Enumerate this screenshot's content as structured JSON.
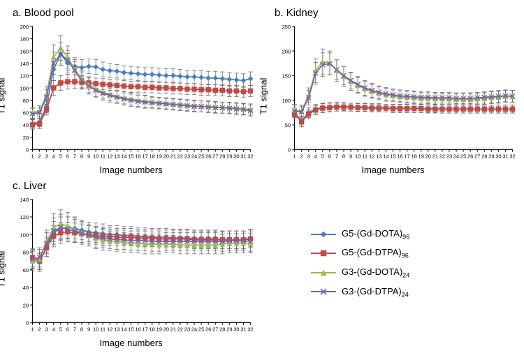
{
  "series_meta": [
    {
      "key": "g5dota",
      "label": "G5-(Gd-DOTA)",
      "sub": "96",
      "color": "#4a7ebb",
      "marker": "diamond"
    },
    {
      "key": "g5dtpa",
      "label": "G5-(Gd-DTPA)",
      "sub": "96",
      "color": "#be4b48",
      "marker": "square"
    },
    {
      "key": "g3dota",
      "label": "G3-(Gd-DOTA)",
      "sub": "24",
      "color": "#98b954",
      "marker": "triangle"
    },
    {
      "key": "g3dtpa",
      "label": "G3-(Gd-DTPA)",
      "sub": "24",
      "color": "#7d60a0",
      "marker": "x"
    }
  ],
  "error_bar_color": "#666666",
  "tick_color": "#000000",
  "axis_color": "#000000",
  "background": "#ffffff",
  "line_width": 1.6,
  "marker_size": 3.2,
  "error_cap": 3,
  "tick_fontsize": 7,
  "label_fontsize": 13,
  "title_fontsize": 15,
  "charts": [
    {
      "id": "blood",
      "title": "a. Blood pool",
      "xlabel": "Image numbers",
      "ylabel": "T1 signal",
      "ylim": [
        0,
        200
      ],
      "ytick_step": 20,
      "xticks": 32,
      "series": {
        "g5dota": {
          "y": [
            42,
            45,
            70,
            130,
            155,
            140,
            135,
            133,
            135,
            134,
            130,
            128,
            127,
            125,
            124,
            123,
            122,
            122,
            121,
            120,
            120,
            119,
            118,
            118,
            117,
            116,
            116,
            115,
            114,
            113,
            112,
            115
          ],
          "err": [
            8,
            8,
            10,
            18,
            18,
            16,
            14,
            13,
            12,
            12,
            12,
            11,
            11,
            11,
            11,
            11,
            11,
            11,
            11,
            11,
            11,
            11,
            11,
            11,
            11,
            11,
            11,
            11,
            11,
            11,
            11,
            11
          ]
        },
        "g5dtpa": {
          "y": [
            40,
            42,
            65,
            100,
            108,
            110,
            110,
            109,
            108,
            107,
            106,
            105,
            104,
            103,
            102,
            102,
            101,
            101,
            100,
            100,
            99,
            99,
            98,
            98,
            97,
            97,
            96,
            96,
            95,
            95,
            94,
            95
          ],
          "err": [
            8,
            8,
            9,
            12,
            12,
            12,
            11,
            10,
            10,
            9,
            9,
            9,
            9,
            9,
            9,
            9,
            9,
            9,
            9,
            9,
            9,
            9,
            9,
            9,
            9,
            9,
            9,
            9,
            9,
            9,
            9,
            9
          ]
        },
        "g3dota": {
          "y": [
            60,
            62,
            90,
            150,
            165,
            150,
            130,
            115,
            105,
            98,
            93,
            90,
            86,
            84,
            82,
            80,
            78,
            77,
            76,
            75,
            74,
            73,
            72,
            71,
            70,
            70,
            69,
            68,
            68,
            67,
            66,
            65
          ],
          "err": [
            9,
            9,
            12,
            20,
            20,
            18,
            16,
            14,
            13,
            12,
            11,
            11,
            10,
            10,
            10,
            10,
            10,
            9,
            9,
            9,
            9,
            9,
            9,
            9,
            9,
            9,
            9,
            9,
            9,
            9,
            9,
            9
          ]
        },
        "g3dtpa": {
          "y": [
            58,
            60,
            85,
            140,
            155,
            145,
            128,
            112,
            103,
            96,
            91,
            88,
            85,
            82,
            80,
            78,
            77,
            76,
            75,
            74,
            73,
            72,
            71,
            70,
            70,
            69,
            68,
            68,
            67,
            66,
            65,
            63
          ],
          "err": [
            9,
            9,
            12,
            18,
            18,
            16,
            15,
            14,
            13,
            12,
            11,
            11,
            10,
            10,
            10,
            10,
            10,
            9,
            9,
            9,
            9,
            9,
            9,
            9,
            9,
            9,
            9,
            9,
            9,
            9,
            9,
            9
          ]
        }
      }
    },
    {
      "id": "kidney",
      "title": "b. Kidney",
      "xlabel": "Image numbers",
      "ylabel": "T1 signal",
      "ylim": [
        0,
        250
      ],
      "ytick_step": 50,
      "xticks": 32,
      "series": {
        "g5dota": {
          "y": [
            75,
            58,
            75,
            82,
            85,
            86,
            87,
            87,
            86,
            86,
            86,
            85,
            85,
            84,
            84,
            84,
            84,
            83,
            83,
            83,
            83,
            82,
            82,
            82,
            82,
            82,
            82,
            82,
            82,
            82,
            82,
            82
          ],
          "err": [
            10,
            10,
            10,
            10,
            9,
            9,
            9,
            8,
            8,
            8,
            8,
            8,
            8,
            8,
            8,
            8,
            8,
            8,
            8,
            8,
            8,
            8,
            8,
            8,
            8,
            8,
            8,
            8,
            8,
            8,
            8,
            8
          ]
        },
        "g5dtpa": {
          "y": [
            72,
            56,
            72,
            80,
            84,
            85,
            86,
            86,
            86,
            85,
            85,
            84,
            84,
            84,
            83,
            83,
            83,
            83,
            83,
            82,
            82,
            82,
            82,
            82,
            82,
            82,
            82,
            82,
            82,
            82,
            82,
            82
          ],
          "err": [
            10,
            10,
            10,
            9,
            9,
            9,
            8,
            8,
            8,
            8,
            8,
            8,
            8,
            8,
            8,
            8,
            8,
            8,
            8,
            8,
            8,
            8,
            8,
            8,
            8,
            8,
            8,
            8,
            8,
            8,
            8,
            8
          ]
        },
        "g3dota": {
          "y": [
            80,
            78,
            110,
            160,
            178,
            176,
            160,
            148,
            138,
            130,
            123,
            118,
            114,
            111,
            109,
            107,
            106,
            105,
            104,
            104,
            103,
            103,
            103,
            102,
            102,
            102,
            103,
            104,
            105,
            106,
            108,
            108
          ],
          "err": [
            12,
            12,
            15,
            24,
            26,
            24,
            22,
            20,
            18,
            16,
            15,
            14,
            13,
            13,
            12,
            12,
            12,
            12,
            12,
            11,
            11,
            11,
            11,
            11,
            11,
            11,
            11,
            12,
            12,
            12,
            12,
            12
          ]
        },
        "g3dtpa": {
          "y": [
            78,
            76,
            105,
            155,
            172,
            174,
            162,
            150,
            140,
            132,
            125,
            120,
            116,
            113,
            111,
            109,
            108,
            107,
            106,
            106,
            105,
            105,
            105,
            104,
            104,
            104,
            105,
            106,
            107,
            108,
            109,
            108
          ],
          "err": [
            12,
            12,
            15,
            22,
            24,
            22,
            20,
            18,
            17,
            16,
            15,
            14,
            13,
            13,
            12,
            12,
            12,
            12,
            12,
            11,
            11,
            11,
            11,
            11,
            11,
            11,
            11,
            12,
            12,
            12,
            12,
            12
          ]
        }
      }
    },
    {
      "id": "liver",
      "title": "c. Liver",
      "xlabel": "Image numbers",
      "ylabel": "T1 signal",
      "ylim": [
        0,
        140
      ],
      "ytick_step": 20,
      "xticks": 32,
      "series": {
        "g5dota": {
          "y": [
            72,
            68,
            86,
            102,
            107,
            108,
            107,
            105,
            103,
            102,
            101,
            100,
            100,
            99,
            99,
            98,
            98,
            97,
            97,
            97,
            96,
            96,
            96,
            95,
            95,
            95,
            95,
            94,
            94,
            94,
            94,
            96
          ],
          "err": [
            10,
            10,
            11,
            13,
            13,
            12,
            12,
            11,
            11,
            11,
            11,
            10,
            10,
            10,
            10,
            10,
            10,
            10,
            10,
            10,
            10,
            10,
            10,
            10,
            10,
            10,
            10,
            10,
            10,
            10,
            10,
            10
          ]
        },
        "g5dtpa": {
          "y": [
            74,
            70,
            85,
            98,
            102,
            103,
            102,
            101,
            100,
            99,
            98,
            98,
            97,
            97,
            97,
            96,
            96,
            96,
            95,
            95,
            95,
            95,
            95,
            94,
            94,
            94,
            94,
            94,
            94,
            94,
            94,
            95
          ],
          "err": [
            10,
            10,
            10,
            12,
            12,
            11,
            11,
            10,
            10,
            10,
            10,
            10,
            10,
            10,
            10,
            10,
            10,
            10,
            10,
            10,
            10,
            10,
            10,
            10,
            10,
            10,
            10,
            10,
            10,
            10,
            10,
            10
          ]
        },
        "g3dota": {
          "y": [
            70,
            72,
            92,
            108,
            112,
            110,
            106,
            102,
            99,
            96,
            94,
            93,
            92,
            91,
            90,
            90,
            89,
            89,
            89,
            89,
            89,
            88,
            88,
            88,
            88,
            88,
            88,
            89,
            90,
            90,
            90,
            90
          ],
          "err": [
            11,
            11,
            13,
            16,
            16,
            15,
            14,
            13,
            12,
            12,
            12,
            11,
            11,
            11,
            11,
            11,
            11,
            11,
            11,
            10,
            10,
            10,
            10,
            10,
            10,
            10,
            10,
            11,
            11,
            11,
            11,
            11
          ]
        },
        "g3dtpa": {
          "y": [
            72,
            74,
            90,
            104,
            108,
            106,
            104,
            101,
            99,
            97,
            96,
            95,
            94,
            94,
            93,
            93,
            93,
            92,
            92,
            92,
            92,
            92,
            92,
            92,
            92,
            92,
            92,
            92,
            93,
            93,
            93,
            92
          ],
          "err": [
            11,
            11,
            12,
            15,
            15,
            14,
            13,
            12,
            12,
            12,
            11,
            11,
            11,
            11,
            11,
            11,
            11,
            11,
            11,
            10,
            10,
            10,
            10,
            10,
            10,
            10,
            10,
            11,
            11,
            11,
            11,
            11
          ]
        }
      }
    }
  ]
}
